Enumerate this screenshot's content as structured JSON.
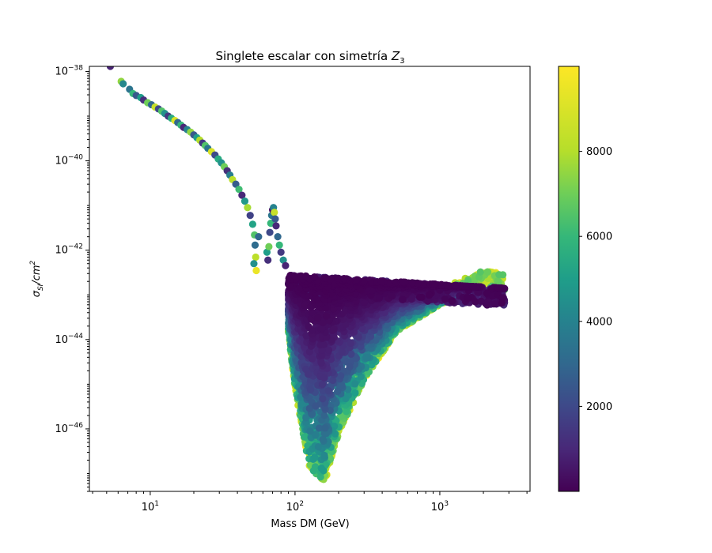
{
  "chart_data": {
    "type": "scatter",
    "title_text": "Singlete escalar con simetría ",
    "title_math": "Z",
    "title_sub": "3",
    "xlabel": "Mass DM (GeV)",
    "ylabel_sigma": "σ",
    "ylabel_sub": "SI",
    "ylabel_rest": "/cm",
    "ylabel_sup": "2",
    "x_scale": "log",
    "y_scale": "log",
    "xlim": [
      3.8,
      4200
    ],
    "ylim": [
      4e-48,
      1.3e-38
    ],
    "x_ticks": [
      {
        "value": 10,
        "base": "10",
        "exp": "1"
      },
      {
        "value": 100,
        "base": "10",
        "exp": "2"
      },
      {
        "value": 1000,
        "base": "10",
        "exp": "3"
      }
    ],
    "y_ticks": [
      {
        "value": 1e-38,
        "base": "10",
        "exp": "−38"
      },
      {
        "value": 1e-40,
        "base": "10",
        "exp": "−40"
      },
      {
        "value": 1e-42,
        "base": "10",
        "exp": "−42"
      },
      {
        "value": 1e-44,
        "base": "10",
        "exp": "−44"
      },
      {
        "value": 1e-46,
        "base": "10",
        "exp": "−46"
      }
    ],
    "colormap": "viridis",
    "colorbar_range": [
      0,
      10000
    ],
    "colorbar_ticks": [
      {
        "value": 2000,
        "label": "2000"
      },
      {
        "value": 4000,
        "label": "4000"
      },
      {
        "value": 6000,
        "label": "6000"
      },
      {
        "value": 8000,
        "label": "8000"
      }
    ],
    "grid": false,
    "legend": "none",
    "series": [
      {
        "points": [
          [
            5.3,
            1.3e-38,
            900
          ],
          [
            6.3,
            6e-39,
            7500
          ],
          [
            6.5,
            5.3e-39,
            4200
          ],
          [
            7.2,
            4e-39,
            3500
          ],
          [
            7.6,
            3.2e-39,
            6000
          ],
          [
            8.0,
            2.9e-39,
            2500
          ],
          [
            8.6,
            2.6e-39,
            5000
          ],
          [
            9.0,
            2.3e-39,
            1200
          ],
          [
            9.6,
            2e-39,
            7000
          ],
          [
            10.2,
            1.8e-39,
            3000
          ],
          [
            10.8,
            1.6e-39,
            8500
          ],
          [
            11.4,
            1.45e-39,
            2000
          ],
          [
            12.0,
            1.3e-39,
            6500
          ],
          [
            12.6,
            1.15e-39,
            4500
          ],
          [
            13.3,
            1e-39,
            1500
          ],
          [
            14.0,
            9e-40,
            5500
          ],
          [
            14.8,
            8e-40,
            9000
          ],
          [
            15.5,
            7.2e-40,
            3000
          ],
          [
            16.3,
            6.3e-40,
            6000
          ],
          [
            17.0,
            5.6e-40,
            1000
          ],
          [
            18.0,
            5e-40,
            4000
          ],
          [
            19.0,
            4.4e-40,
            7500
          ],
          [
            20.0,
            3.8e-40,
            2500
          ],
          [
            21.0,
            3.3e-40,
            5000
          ],
          [
            22.0,
            2.9e-40,
            8000
          ],
          [
            23.0,
            2.5e-40,
            1500
          ],
          [
            24.0,
            2.2e-40,
            6500
          ],
          [
            25.0,
            1.9e-40,
            3500
          ],
          [
            26.5,
            1.6e-40,
            9000
          ],
          [
            28.0,
            1.35e-40,
            2000
          ],
          [
            29.5,
            1.1e-40,
            5500
          ],
          [
            31.0,
            9e-41,
            4500
          ],
          [
            32.5,
            7.4e-41,
            7000
          ],
          [
            34.0,
            6e-41,
            1200
          ],
          [
            35.5,
            4.8e-41,
            3800
          ],
          [
            37.0,
            3.8e-41,
            8200
          ],
          [
            39.0,
            3e-41,
            2600
          ],
          [
            41.0,
            2.3e-41,
            6200
          ],
          [
            43.0,
            1.7e-41,
            1000
          ],
          [
            45.0,
            1.25e-41,
            4800
          ],
          [
            47.0,
            9e-42,
            7800
          ],
          [
            49.0,
            6e-42,
            1800
          ],
          [
            51.0,
            3.8e-42,
            5200
          ],
          [
            52.5,
            2.2e-42,
            6500
          ],
          [
            53.0,
            1.3e-42,
            3200
          ],
          [
            53.5,
            7e-43,
            8200
          ],
          [
            54.0,
            3.5e-43,
            9500
          ],
          [
            52.0,
            5e-43,
            4500
          ],
          [
            56.0,
            2e-42,
            3000
          ],
          [
            64.0,
            9e-43,
            5000
          ],
          [
            65.0,
            6e-43,
            1200
          ],
          [
            66.0,
            1.2e-42,
            7000
          ],
          [
            67.0,
            2.5e-42,
            2000
          ],
          [
            68.0,
            4e-42,
            6000
          ],
          [
            69.0,
            6e-42,
            3500
          ],
          [
            70.0,
            8e-42,
            500
          ],
          [
            71.0,
            9e-42,
            4000
          ],
          [
            72.0,
            7e-42,
            8500
          ],
          [
            73.0,
            5e-42,
            2500
          ],
          [
            74.0,
            3.5e-42,
            1000
          ],
          [
            76.0,
            2e-42,
            3000
          ],
          [
            78.0,
            1.3e-42,
            6000
          ],
          [
            80.0,
            9e-43,
            1500
          ],
          [
            83.0,
            6e-43,
            4500
          ],
          [
            86.0,
            4.5e-43,
            900
          ]
        ]
      }
    ],
    "regions": [
      {
        "name": "main-band",
        "x_range": [
          90,
          2800
        ],
        "y_top": [
          2.8e-43,
          1.4e-43
        ],
        "y_bottom_v": [
          [
            90,
            1.5e-44
          ],
          [
            100,
            8e-46
          ],
          [
            125,
            1.5e-47
          ],
          [
            160,
            6e-48
          ],
          [
            200,
            8e-47
          ],
          [
            300,
            1.2e-45
          ],
          [
            500,
            1.5e-44
          ],
          [
            1000,
            6e-44
          ],
          [
            2000,
            1.6e-43
          ],
          [
            2800,
            1.3e-43
          ]
        ]
      }
    ]
  }
}
